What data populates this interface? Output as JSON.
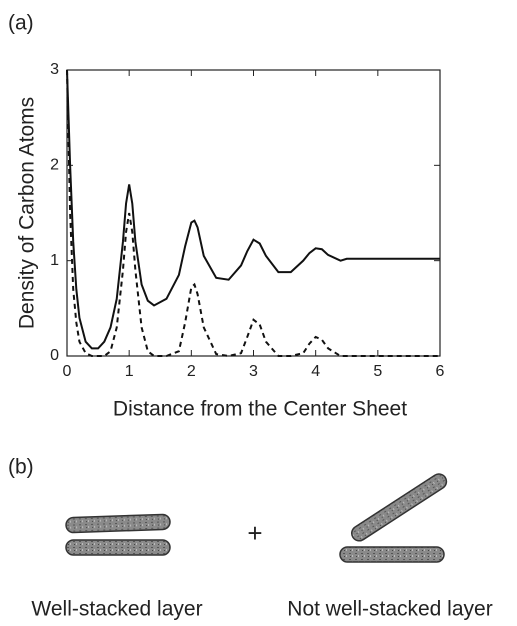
{
  "panel_a": {
    "label": "(a)"
  },
  "chart_data": {
    "type": "line",
    "xlabel": "Distance from the Center Sheet",
    "ylabel": "Density of Carbon Atoms",
    "x": [
      0,
      0.05,
      0.1,
      0.15,
      0.2,
      0.3,
      0.4,
      0.5,
      0.6,
      0.7,
      0.8,
      0.9,
      0.95,
      1.0,
      1.05,
      1.1,
      1.2,
      1.3,
      1.4,
      1.6,
      1.8,
      1.9,
      2.0,
      2.05,
      2.1,
      2.2,
      2.4,
      2.6,
      2.8,
      2.9,
      3.0,
      3.1,
      3.2,
      3.4,
      3.6,
      3.8,
      3.9,
      4.0,
      4.1,
      4.2,
      4.4,
      4.5,
      5.0,
      5.5,
      6.0
    ],
    "series": [
      {
        "color": "#111111",
        "linestyle": "solid",
        "values": [
          3.0,
          2.0,
          1.2,
          0.7,
          0.4,
          0.15,
          0.08,
          0.08,
          0.15,
          0.3,
          0.6,
          1.2,
          1.6,
          1.8,
          1.6,
          1.2,
          0.75,
          0.58,
          0.53,
          0.6,
          0.85,
          1.15,
          1.4,
          1.42,
          1.35,
          1.05,
          0.82,
          0.8,
          0.95,
          1.1,
          1.22,
          1.18,
          1.05,
          0.88,
          0.88,
          1.0,
          1.08,
          1.13,
          1.12,
          1.06,
          1.0,
          1.02,
          1.02,
          1.02,
          1.02
        ]
      },
      {
        "color": "#111111",
        "linestyle": "dashed",
        "values": [
          3.0,
          1.5,
          0.7,
          0.35,
          0.15,
          0.03,
          0,
          0,
          0,
          0.05,
          0.3,
          0.9,
          1.3,
          1.5,
          1.3,
          0.9,
          0.3,
          0.05,
          0,
          0,
          0.05,
          0.35,
          0.72,
          0.75,
          0.65,
          0.3,
          0.02,
          0,
          0.03,
          0.2,
          0.38,
          0.33,
          0.15,
          0,
          0,
          0.03,
          0.13,
          0.2,
          0.17,
          0.08,
          0,
          0,
          0,
          0,
          0
        ]
      }
    ],
    "xlim": [
      0,
      6
    ],
    "ylim": [
      0,
      3
    ],
    "xticks": [
      0,
      1,
      2,
      3,
      4,
      5,
      6
    ],
    "yticks": [
      0,
      1,
      2,
      3
    ]
  },
  "panel_b": {
    "label": "(b)",
    "operator": "+",
    "captions": [
      "Well-stacked layer",
      "Not well-stacked layer"
    ]
  }
}
